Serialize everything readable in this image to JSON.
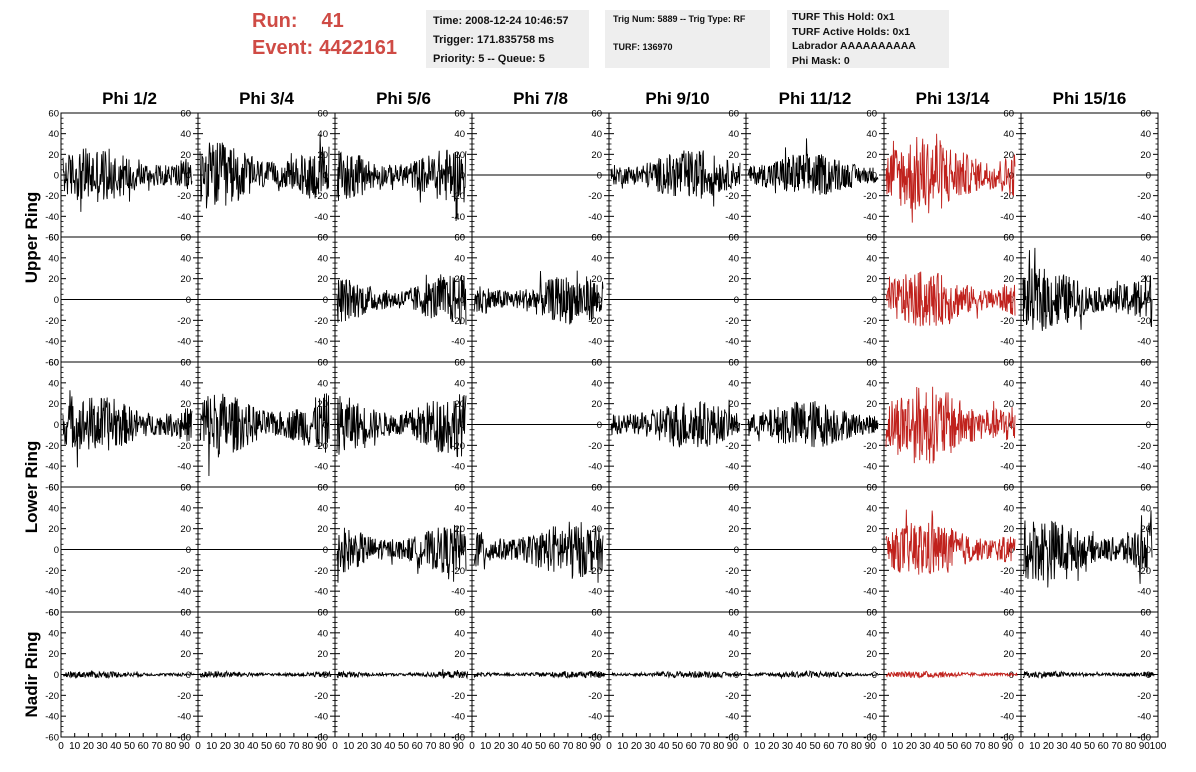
{
  "header": {
    "run_label": "Run:",
    "run_value": "41",
    "event_label": "Event:",
    "event_value": "4422161",
    "time": "Time: 2008-12-24 10:46:57",
    "trigger": "Trigger: 171.835758 ms",
    "priority": "Priority: 5 -- Queue: 5",
    "trig_num": "Trig Num: 5889 -- Trig Type: RF",
    "turf": "TURF: 136970",
    "turf_this_hold": "TURF This Hold: 0x1",
    "turf_active_holds": "TURF Active Holds: 0x1",
    "labrador": "Labrador AAAAAAAAAA",
    "phi_mask": "Phi Mask: 0"
  },
  "columns": [
    "Phi 1/2",
    "Phi 3/4",
    "Phi 5/6",
    "Phi 7/8",
    "Phi 9/10",
    "Phi 11/12",
    "Phi 13/14",
    "Phi 15/16"
  ],
  "ring_labels": [
    "Upper Ring",
    "Lower Ring",
    "Nadir Ring"
  ],
  "colors": {
    "run_text": "#cf4b45",
    "trace_black": "#000000",
    "trace_red": "#c0221d",
    "info_bg": "#eeeeee"
  },
  "chart_data": {
    "type": "line",
    "y_ticks": [
      "60",
      "40",
      "20",
      "0",
      "-20",
      "-40",
      "-60"
    ],
    "x_ticks": [
      "0",
      "10",
      "20",
      "30",
      "40",
      "50",
      "60",
      "70",
      "80",
      "90",
      "100"
    ],
    "ylim": [
      -60,
      60
    ],
    "xlim": [
      0,
      100
    ],
    "panel_rows": [
      {
        "row": 1,
        "amplitudes": [
          25,
          30,
          25,
          0,
          22,
          20,
          35,
          0
        ]
      },
      {
        "row": 2,
        "amplitudes": [
          0,
          0,
          22,
          22,
          0,
          0,
          25,
          28
        ]
      },
      {
        "row": 3,
        "amplitudes": [
          25,
          30,
          28,
          0,
          22,
          22,
          35,
          0
        ]
      },
      {
        "row": 4,
        "amplitudes": [
          0,
          0,
          22,
          25,
          0,
          0,
          25,
          28
        ]
      },
      {
        "row": 5,
        "amplitudes": [
          3,
          3,
          3,
          3,
          3,
          3,
          3,
          3
        ]
      }
    ],
    "highlight_column": "Phi 13/14"
  }
}
